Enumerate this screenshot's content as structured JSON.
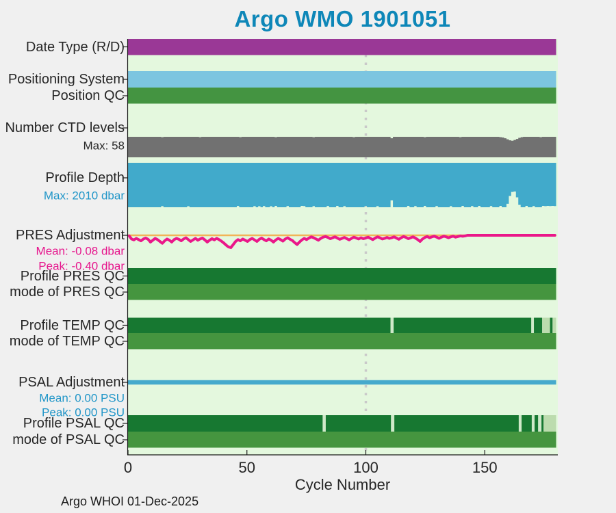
{
  "title": "Argo WMO 1901051",
  "x_axis_label": "Cycle Number",
  "footer": "Argo WHOI 01-Dec-2025",
  "palette": {
    "page_bg": "#f0f0f0",
    "plot_bg": "#e4f8de",
    "purple": "#9a3896",
    "light_blue": "#7cc5e0",
    "green": "#449441",
    "gray": "#717171",
    "depth_blue": "#41aacb",
    "magenta": "#ea1889",
    "orange": "#f2b457",
    "dark_green": "#177831",
    "mid_green": "#45953f",
    "pale_green": "#cfe9c9",
    "pale_green2": "#bcdcae",
    "psal_blue": "#45aacc",
    "title_blue": "#0e87b8",
    "text_dark": "#262626",
    "magenta_text": "#e6148c",
    "blue_text": "#2196c8",
    "dotted_line": "#c9c9c9",
    "axis": "#1a1a1a"
  },
  "chart_data": {
    "type": "multi-row-status-timeline",
    "title": "Argo WMO 1901051",
    "xlabel": "Cycle Number",
    "x": {
      "min": 0,
      "max": 181,
      "ticks": [
        {
          "cycle": 0,
          "label": "0"
        },
        {
          "cycle": 50,
          "label": "50"
        },
        {
          "cycle": 100,
          "label": "100"
        },
        {
          "cycle": 150,
          "label": "150"
        }
      ],
      "dotted_gridline_at": 100
    },
    "rows": [
      {
        "id": "date_type",
        "label": "Date Type (R/D)",
        "render": "segments",
        "color_key": "purple",
        "segments": [
          [
            0,
            181
          ]
        ]
      },
      {
        "id": "positioning_system",
        "label": "Positioning System",
        "render": "segments",
        "color_key": "light_blue",
        "segments": [
          [
            0,
            181
          ]
        ]
      },
      {
        "id": "position_qc",
        "label": "Position QC",
        "render": "segments",
        "color_key": "green",
        "segments": [
          [
            0,
            181
          ]
        ]
      },
      {
        "id": "number_ctd_levels",
        "label": "Number CTD levels",
        "sublabels": [
          "Max: 58"
        ],
        "sublabel_color": "text_dark",
        "render": "bars_up",
        "color_key": "gray",
        "max": 58,
        "series": {
          "n": 181,
          "base": 58,
          "overrides": {
            "14": 57,
            "30": 57,
            "47": 57,
            "62": 57,
            "78": 57,
            "95": 57,
            "111": 54,
            "125": 57,
            "140": 57,
            "157": 57,
            "158": 56,
            "159": 54,
            "160": 51,
            "161": 48,
            "162": 47,
            "163": 49,
            "164": 52,
            "165": 55,
            "166": 57,
            "174": 57
          }
        }
      },
      {
        "id": "profile_depth",
        "label": "Profile Depth",
        "sublabels": [
          "Max: 2010 dbar"
        ],
        "sublabel_color": "blue_text",
        "render": "bars_down",
        "color_key": "depth_blue",
        "max": 2010,
        "series": {
          "n": 181,
          "base": 2010,
          "overrides": {
            "14": 1958,
            "25": 1965,
            "46": 1952,
            "53": 1960,
            "55": 1965,
            "57": 1955,
            "60": 1962,
            "62": 1950,
            "67": 1955,
            "73": 1948,
            "74": 1956,
            "78": 1960,
            "84": 1952,
            "88": 1948,
            "91": 1960,
            "100": 1955,
            "105": 1960,
            "111": 1700,
            "118": 1950,
            "121": 1956,
            "125": 1948,
            "130": 1955,
            "136": 1960,
            "141": 1950,
            "145": 1955,
            "148": 1950,
            "153": 1955,
            "157": 1948,
            "160": 1850,
            "161": 1500,
            "162": 1320,
            "163": 1300,
            "164": 1560,
            "165": 1900,
            "168": 1950,
            "171": 1956,
            "175": 1950,
            "176": 1958,
            "177": 1948,
            "178": 1956,
            "179": 1948,
            "180": 1955
          }
        }
      },
      {
        "id": "pres_adjustment",
        "label": "PRES Adjustment",
        "sublabels": [
          "Mean: -0.08 dbar",
          "Peak: -0.40 dbar"
        ],
        "sublabel_color": "magenta_text",
        "render": "line",
        "color_key": "magenta",
        "zero_line_color_key": "orange",
        "units": "dbar",
        "values": [
          -0.02,
          -0.12,
          -0.15,
          -0.1,
          -0.14,
          -0.18,
          -0.12,
          -0.09,
          -0.13,
          -0.22,
          -0.16,
          -0.1,
          -0.14,
          -0.2,
          -0.26,
          -0.18,
          -0.12,
          -0.16,
          -0.22,
          -0.14,
          -0.1,
          -0.13,
          -0.18,
          -0.12,
          -0.08,
          -0.14,
          -0.2,
          -0.15,
          -0.1,
          -0.16,
          -0.12,
          -0.09,
          -0.15,
          -0.22,
          -0.16,
          -0.11,
          -0.15,
          -0.1,
          -0.14,
          -0.19,
          -0.25,
          -0.32,
          -0.38,
          -0.4,
          -0.3,
          -0.2,
          -0.14,
          -0.18,
          -0.12,
          -0.16,
          -0.2,
          -0.14,
          -0.1,
          -0.15,
          -0.2,
          -0.13,
          -0.09,
          -0.14,
          -0.18,
          -0.12,
          -0.16,
          -0.22,
          -0.15,
          -0.1,
          -0.14,
          -0.19,
          -0.12,
          -0.08,
          -0.13,
          -0.17,
          -0.24,
          -0.3,
          -0.22,
          -0.15,
          -0.1,
          -0.14,
          -0.09,
          -0.05,
          -0.08,
          -0.12,
          -0.16,
          -0.1,
          -0.06,
          -0.04,
          -0.07,
          -0.11,
          -0.08,
          -0.05,
          -0.09,
          -0.13,
          -0.1,
          -0.07,
          -0.11,
          -0.15,
          -0.1,
          -0.06,
          -0.09,
          -0.12,
          -0.08,
          -0.11,
          -0.09,
          -0.06,
          -0.1,
          -0.14,
          -0.09,
          -0.05,
          -0.08,
          -0.12,
          -0.1,
          -0.07,
          -0.1,
          -0.08,
          -0.05,
          -0.09,
          -0.13,
          -0.08,
          -0.04,
          -0.07,
          -0.11,
          -0.08,
          -0.05,
          -0.09,
          -0.14,
          -0.2,
          -0.12,
          -0.07,
          -0.04,
          -0.08,
          -0.05,
          -0.03,
          -0.06,
          -0.1,
          -0.06,
          -0.03,
          -0.05,
          -0.08,
          -0.05,
          -0.03,
          -0.06,
          -0.04,
          -0.02,
          -0.03,
          -0.02,
          0,
          0,
          0,
          0,
          0,
          0,
          0,
          0,
          0,
          0,
          0,
          0,
          0,
          0,
          0,
          0,
          0,
          0,
          0,
          0,
          0,
          0,
          0,
          0,
          0,
          0,
          0,
          0,
          0,
          0,
          0,
          0,
          0,
          0,
          0,
          0,
          0,
          0
        ]
      },
      {
        "id": "profile_pres_qc",
        "label": "Profile PRES QC",
        "render": "segments",
        "segments": [
          [
            0,
            181,
            "dark_green"
          ]
        ]
      },
      {
        "id": "mode_pres_qc",
        "label": "mode of PRES QC",
        "render": "segments",
        "segments": [
          [
            0,
            181,
            "mid_green"
          ]
        ]
      },
      {
        "id": "profile_temp_qc",
        "label": "Profile TEMP QC",
        "render": "segments",
        "segments": [
          [
            0,
            111,
            "dark_green"
          ],
          [
            111,
            112.3,
            "pale_green"
          ],
          [
            112.3,
            170.5,
            "dark_green"
          ],
          [
            170.5,
            171.6,
            "pale_green"
          ],
          [
            171.6,
            175.1,
            "dark_green"
          ],
          [
            175.1,
            178.4,
            "pale_green2"
          ],
          [
            178.4,
            179.5,
            "dark_green"
          ],
          [
            179.5,
            181,
            "pale_green2"
          ]
        ]
      },
      {
        "id": "mode_temp_qc",
        "label": "mode of TEMP QC",
        "render": "segments",
        "segments": [
          [
            0,
            181,
            "mid_green"
          ]
        ]
      },
      {
        "id": "psal_adjustment",
        "label": "PSAL Adjustment",
        "sublabels": [
          "Mean: 0.00 PSU",
          "Peak: 0.00 PSU"
        ],
        "sublabel_color": "blue_text",
        "render": "line",
        "color_key": "psal_blue",
        "units": "PSU",
        "constant": 0
      },
      {
        "id": "profile_psal_qc",
        "label": "Profile PSAL QC",
        "render": "segments",
        "segments": [
          [
            0,
            82.3,
            "dark_green"
          ],
          [
            82.3,
            83.6,
            "pale_green"
          ],
          [
            83.6,
            111.2,
            "dark_green"
          ],
          [
            111.2,
            112.6,
            "pale_green"
          ],
          [
            112.6,
            165.2,
            "dark_green"
          ],
          [
            165.2,
            166.4,
            "pale_green"
          ],
          [
            166.4,
            170.7,
            "dark_green"
          ],
          [
            170.7,
            171.9,
            "pale_green"
          ],
          [
            171.9,
            173.4,
            "dark_green"
          ],
          [
            173.4,
            174.8,
            "pale_green"
          ],
          [
            174.8,
            175.7,
            "dark_green"
          ],
          [
            175.7,
            181,
            "pale_green2"
          ]
        ]
      },
      {
        "id": "mode_psal_qc",
        "label": "mode of PSAL QC",
        "render": "segments",
        "segments": [
          [
            0,
            181,
            "mid_green"
          ]
        ]
      }
    ]
  }
}
